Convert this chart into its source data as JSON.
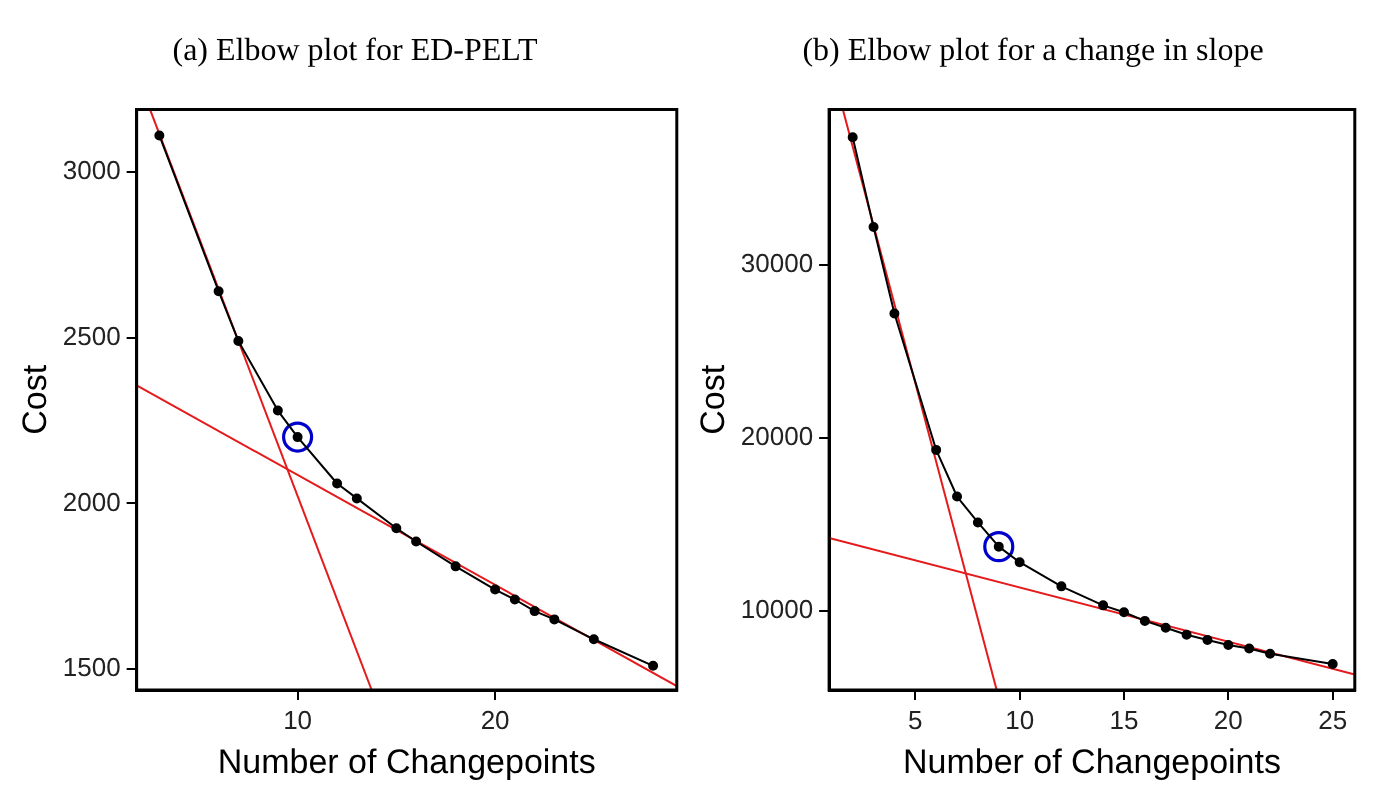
{
  "chart_data": [
    {
      "type": "line",
      "title": "(a) Elbow plot for ED-PELT",
      "xlabel": "Number of Changepoints",
      "ylabel": "Cost",
      "xlim": [
        1.85,
        29.2
      ],
      "xticks": [
        10,
        20
      ],
      "ylim": [
        1437,
        3188
      ],
      "yticks": [
        1500,
        2000,
        2500,
        3000
      ],
      "grid": false,
      "legend": false,
      "series": [
        {
          "color": "#000000",
          "marker": "circle",
          "x": [
            3,
            6,
            7,
            9,
            10,
            12,
            13,
            15,
            16,
            18,
            20,
            21,
            22,
            23,
            25,
            28
          ],
          "values": [
            3110,
            2640,
            2490,
            2280,
            2200,
            2060,
            2015,
            1925,
            1885,
            1810,
            1740,
            1710,
            1675,
            1650,
            1590,
            1510
          ]
        },
        {
          "type": "scatter",
          "color": "#0000cc",
          "marker": "circle",
          "x": [
            10
          ],
          "values": [
            2200
          ]
        },
        {
          "color": "#e41a1c",
          "marker": "none",
          "x": [
            2.53,
            13.75
          ],
          "values": [
            3188,
            1437
          ]
        },
        {
          "color": "#e41a1c",
          "marker": "none",
          "x": [
            1.85,
            29.2
          ],
          "values": [
            2356,
            1449
          ]
        }
      ]
    },
    {
      "type": "line",
      "title": "(b) Elbow plot for a change in slope",
      "xlabel": "Number of Changepoints",
      "ylabel": "Cost",
      "xlim": [
        0.87,
        26.06
      ],
      "xticks": [
        5,
        10,
        15,
        20,
        25
      ],
      "ylim": [
        5400,
        39000
      ],
      "yticks": [
        10000,
        20000,
        30000
      ],
      "grid": false,
      "legend": false,
      "series": [
        {
          "color": "#000000",
          "marker": "circle",
          "x": [
            2,
            3,
            4,
            6,
            7,
            8,
            9,
            10,
            12,
            14,
            15,
            16,
            17,
            18,
            19,
            20,
            21,
            22,
            25
          ],
          "values": [
            37400,
            32200,
            27200,
            19300,
            16600,
            15100,
            13700,
            12800,
            11400,
            10300,
            9900,
            9400,
            9000,
            8600,
            8300,
            8000,
            7800,
            7500,
            6900
          ]
        },
        {
          "type": "scatter",
          "color": "#0000cc",
          "marker": "circle",
          "x": [
            9
          ],
          "values": [
            13700
          ]
        },
        {
          "color": "#e41a1c",
          "marker": "none",
          "x": [
            1.53,
            8.9
          ],
          "values": [
            39000,
            5400
          ]
        },
        {
          "color": "#e41a1c",
          "marker": "none",
          "x": [
            0.87,
            26.06
          ],
          "values": [
            14200,
            6300
          ]
        }
      ]
    }
  ]
}
